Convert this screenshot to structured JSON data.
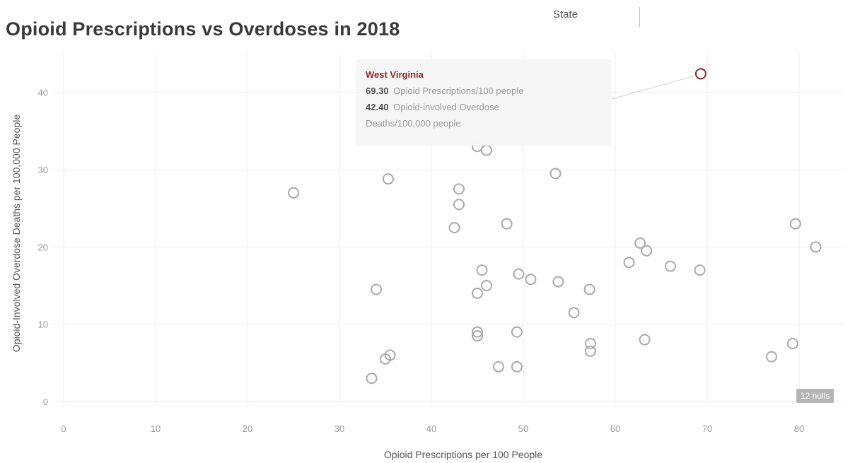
{
  "header": {
    "state_label": "State"
  },
  "tooltip": {
    "state": "West Virginia",
    "prescriptions_value": "69.30",
    "prescriptions_label": "Opioid Prescriptions/100 people",
    "deaths_value": "42.40",
    "deaths_label_line1": "Opioid-involved Overdose",
    "deaths_label_line2": "Deaths/100,000 people"
  },
  "nulls_badge": "12 nulls",
  "colors": {
    "marker": "#a9a9a9",
    "highlight": "#8b2a2a",
    "grid": "#eeeeee",
    "tick_text": "#9c9c9c",
    "axis_title": "#555555"
  },
  "chart_data": {
    "type": "scatter",
    "title": "Opioid Prescriptions vs Overdoses in 2018",
    "xlabel": "Opioid Prescriptions per 100 People",
    "ylabel": "Opioid-Involved Overdose Deaths per 100,000 People",
    "xlim": [
      0,
      85
    ],
    "ylim": [
      0,
      45
    ],
    "xticks": [
      0,
      10,
      20,
      30,
      40,
      50,
      60,
      70,
      80
    ],
    "yticks": [
      0,
      10,
      20,
      30,
      40
    ],
    "grid": true,
    "highlighted": {
      "state": "West Virginia",
      "x": 69.3,
      "y": 42.4
    },
    "points": [
      {
        "x": 25.0,
        "y": 27.0
      },
      {
        "x": 33.5,
        "y": 3.0
      },
      {
        "x": 34.0,
        "y": 14.5
      },
      {
        "x": 35.0,
        "y": 5.5
      },
      {
        "x": 35.5,
        "y": 6.0
      },
      {
        "x": 35.3,
        "y": 28.8
      },
      {
        "x": 42.5,
        "y": 22.5
      },
      {
        "x": 43.0,
        "y": 25.5
      },
      {
        "x": 43.0,
        "y": 27.5
      },
      {
        "x": 45.0,
        "y": 33.0
      },
      {
        "x": 46.0,
        "y": 32.5
      },
      {
        "x": 45.0,
        "y": 14.0
      },
      {
        "x": 45.5,
        "y": 17.0
      },
      {
        "x": 46.0,
        "y": 15.0
      },
      {
        "x": 45.0,
        "y": 9.0
      },
      {
        "x": 45.0,
        "y": 8.5
      },
      {
        "x": 47.3,
        "y": 4.5
      },
      {
        "x": 48.2,
        "y": 23.0
      },
      {
        "x": 49.3,
        "y": 4.5
      },
      {
        "x": 49.3,
        "y": 9.0
      },
      {
        "x": 49.5,
        "y": 16.5
      },
      {
        "x": 50.8,
        "y": 15.8
      },
      {
        "x": 53.5,
        "y": 29.5
      },
      {
        "x": 53.8,
        "y": 15.5
      },
      {
        "x": 55.5,
        "y": 11.5
      },
      {
        "x": 57.2,
        "y": 14.5
      },
      {
        "x": 57.3,
        "y": 7.5
      },
      {
        "x": 57.3,
        "y": 6.5
      },
      {
        "x": 61.5,
        "y": 18.0
      },
      {
        "x": 62.7,
        "y": 20.5
      },
      {
        "x": 63.4,
        "y": 19.5
      },
      {
        "x": 63.2,
        "y": 8.0
      },
      {
        "x": 66.0,
        "y": 17.5
      },
      {
        "x": 69.2,
        "y": 17.0
      },
      {
        "x": 69.3,
        "y": 42.4
      },
      {
        "x": 77.0,
        "y": 5.8
      },
      {
        "x": 79.3,
        "y": 7.5
      },
      {
        "x": 79.6,
        "y": 23.0
      },
      {
        "x": 81.8,
        "y": 20.0
      }
    ]
  }
}
